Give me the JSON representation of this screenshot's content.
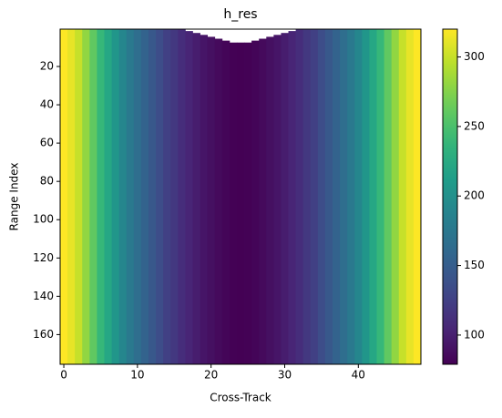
{
  "chart_data": {
    "type": "heatmap",
    "title": "h_res",
    "xlabel": "Cross-Track",
    "ylabel": "Range Index",
    "x": [
      0,
      1,
      2,
      3,
      4,
      5,
      6,
      7,
      8,
      9,
      10,
      11,
      12,
      13,
      14,
      15,
      16,
      17,
      18,
      19,
      20,
      21,
      22,
      23,
      24,
      25,
      26,
      27,
      28,
      29,
      30,
      31,
      32,
      33,
      34,
      35,
      36,
      37,
      38,
      39,
      40,
      41,
      42,
      43,
      44,
      45,
      46,
      47,
      48
    ],
    "values": [
      320,
      312,
      300,
      280,
      260,
      240,
      222,
      205,
      190,
      177,
      165,
      155,
      145,
      135,
      125,
      118,
      110,
      104,
      98,
      93,
      89,
      85,
      82,
      80,
      79,
      80,
      82,
      85,
      89,
      93,
      98,
      104,
      110,
      118,
      125,
      135,
      145,
      155,
      165,
      177,
      190,
      205,
      222,
      240,
      260,
      280,
      300,
      312,
      320
    ],
    "nan_rows": [
      0,
      0,
      0,
      0,
      0,
      0,
      0,
      0,
      0,
      0,
      0,
      0,
      0,
      0,
      0,
      0,
      0,
      1,
      2,
      3,
      4,
      5,
      6,
      7,
      7,
      7,
      6,
      5,
      4,
      3,
      2,
      1,
      0,
      0,
      0,
      0,
      0,
      0,
      0,
      0,
      0,
      0,
      0,
      0,
      0,
      0,
      0,
      0,
      0
    ],
    "xlim": [
      -0.5,
      48.5
    ],
    "xticks": [
      0,
      10,
      20,
      30,
      40
    ],
    "ylim": [
      175.5,
      0.5
    ],
    "yticks": [
      20,
      40,
      60,
      80,
      100,
      120,
      140,
      160
    ],
    "clim": [
      79,
      320
    ],
    "cticks": [
      100,
      150,
      200,
      250,
      300
    ],
    "colormap": "viridis"
  }
}
